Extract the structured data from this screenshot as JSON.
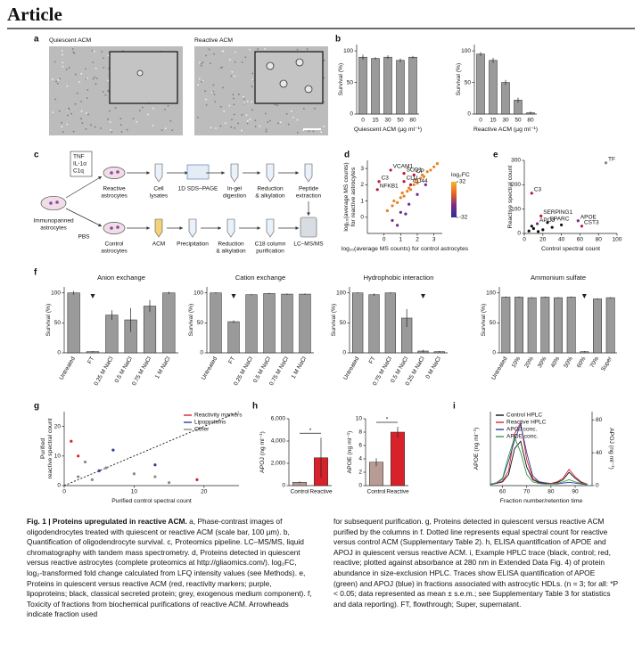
{
  "header": {
    "title": "Article"
  },
  "panel_labels": [
    "a",
    "b",
    "c",
    "d",
    "e",
    "f",
    "g",
    "h",
    "i"
  ],
  "micrographs": {
    "labels": [
      "Quiescent ACM",
      "Reactive ACM"
    ]
  },
  "diagram": {
    "labels": [
      [
        "TNF",
        "IL-1α",
        "C1q"
      ],
      [
        "Reactive",
        "astrocytes"
      ],
      [
        "Immunopanned",
        "astrocytes"
      ],
      [
        "PBS"
      ],
      [
        "Control",
        "astrocytes"
      ],
      [
        "Cell",
        "lysates"
      ],
      [
        "1D SDS–PAGE"
      ],
      [
        "In-gel",
        "digestion"
      ],
      [
        "Reduction",
        "& alkylation"
      ],
      [
        "Peptide",
        "extraction"
      ],
      [
        "ACM"
      ],
      [
        "Precipitation"
      ],
      [
        "Reduction",
        "& alkylation"
      ],
      [
        "C18 column",
        "purification"
      ],
      [
        "LC–MS/MS"
      ]
    ]
  },
  "chart_data": [
    {
      "type": "bar",
      "categories": [
        "0",
        "15",
        "30",
        "50",
        "80"
      ],
      "values": [
        90,
        88,
        90,
        85,
        90
      ],
      "errors": [
        4,
        2,
        3,
        3,
        2
      ],
      "color": "#9a9a9a",
      "ylim": [
        0,
        110
      ],
      "yticks": [
        0,
        50,
        100
      ],
      "ylabel": "Survival (%)",
      "xlabel": "Quiescent ACM (µg ml⁻¹)"
    },
    {
      "type": "bar",
      "categories": [
        "0",
        "15",
        "30",
        "50",
        "80"
      ],
      "values": [
        95,
        85,
        50,
        22,
        2
      ],
      "errors": [
        3,
        4,
        4,
        4,
        2
      ],
      "color": "#9a9a9a",
      "ylim": [
        0,
        110
      ],
      "yticks": [
        0,
        50,
        100
      ],
      "ylabel": "Survival (%)",
      "xlabel": "Reactive ACM (µg ml⁻¹)"
    },
    {
      "type": "scatter",
      "xlim": [
        -1,
        3.5
      ],
      "ylim": [
        -1,
        3.5
      ],
      "xticks": [
        0,
        1,
        2,
        3
      ],
      "yticks": [
        0,
        1,
        2,
        3
      ],
      "xlabel": "log₁₀(average MS counts) for control astrocytes",
      "ylabel": [
        "log₁₀(average MS counts)",
        "for reactive astrocytes"
      ],
      "colorbar": {
        "title": "log₂FC",
        "ticks": [
          32,
          -32
        ],
        "colors": [
          "#f7b531",
          "#e8631c",
          "#7b2a8c",
          "#2b2f8f"
        ]
      },
      "series": [
        {
          "color": "#e8821f",
          "x": [
            0.2,
            0.5,
            0.8,
            1.0,
            1.2,
            1.4,
            1.6,
            1.8,
            2.0,
            2.2,
            2.4,
            2.6,
            2.8,
            3.0,
            3.2,
            0.6,
            1.1,
            1.5,
            1.9,
            2.3
          ],
          "y": [
            0.4,
            0.7,
            0.9,
            1.2,
            1.3,
            1.6,
            1.7,
            2.0,
            2.1,
            2.4,
            2.5,
            2.8,
            2.9,
            3.1,
            3.3,
            1.0,
            1.5,
            1.8,
            2.3,
            2.6
          ]
        },
        {
          "color": "#6a2c8c",
          "x": [
            0.5,
            1.0,
            1.5,
            2.0,
            2.5,
            0.8,
            1.3
          ],
          "y": [
            -0.2,
            0.3,
            0.8,
            1.4,
            2.0,
            -0.5,
            0.2
          ]
        },
        {
          "color": "#c0143c",
          "x": [
            0.4,
            -0.3,
            1.2,
            1.8,
            1.2,
            1.6,
            -0.4
          ],
          "y": [
            2.9,
            2.2,
            2.7,
            2.6,
            2.2,
            2.0,
            1.7
          ],
          "labels": [
            "VCAM1",
            "C3",
            "SOD1",
            "CP",
            "CLU",
            "CD44",
            "NFKB1"
          ]
        }
      ]
    },
    {
      "type": "scatter",
      "xlim": [
        0,
        100
      ],
      "ylim": [
        0,
        300
      ],
      "xticks": [
        0,
        20,
        40,
        60,
        80,
        100
      ],
      "yticks": [
        0,
        100,
        200,
        300
      ],
      "xlabel": "Control spectral count",
      "ylabel": [
        "Reactive spectral count"
      ],
      "series": [
        {
          "color": "#c0143c",
          "x": [
            8,
            18,
            62
          ],
          "y": [
            165,
            72,
            30
          ],
          "labels": [
            "C3",
            "SERPING1",
            "CST3"
          ]
        },
        {
          "color": "#7a2a8c",
          "x": [
            14,
            58
          ],
          "y": [
            40,
            52
          ],
          "labels": [
            "APOJ",
            "APOE"
          ]
        },
        {
          "color": "#111111",
          "x": [
            25,
            5,
            10,
            15,
            30,
            40,
            20,
            8
          ],
          "y": [
            45,
            10,
            20,
            8,
            25,
            35,
            15,
            30
          ],
          "labels": [
            "SPARC",
            null,
            null,
            null,
            null,
            null,
            null,
            null
          ]
        },
        {
          "color": "#888888",
          "x": [
            88
          ],
          "y": [
            290
          ],
          "labels": [
            "TF"
          ]
        }
      ]
    },
    {
      "type": "bar",
      "title": "Anion exchange",
      "categories": [
        "Untreated",
        "FT",
        "0.25 M NaCl",
        "0.5 M NaCl",
        "0.75 M NaCl",
        "1 M NaCl"
      ],
      "values": [
        100,
        2,
        63,
        55,
        78,
        100
      ],
      "errors": [
        3,
        1,
        8,
        20,
        10,
        2
      ],
      "arrow_at": "FT",
      "color": "#9a9a9a",
      "ylim": [
        0,
        110
      ],
      "yticks": [
        0,
        50,
        100
      ],
      "ylabel": "Survival (%)"
    },
    {
      "type": "bar",
      "title": "Cation exchange",
      "categories": [
        "Untreated",
        "FT",
        "0.25 M NaCl",
        "0.5 M NaCl",
        "0.75 M NaCl",
        "1 M NaCl"
      ],
      "values": [
        100,
        52,
        97,
        99,
        98,
        98
      ],
      "errors": [
        1,
        2,
        1,
        1,
        1,
        1
      ],
      "arrow_at": "FT",
      "color": "#9a9a9a",
      "ylim": [
        0,
        110
      ],
      "yticks": [
        0,
        50,
        100
      ],
      "ylabel": "Survival (%)"
    },
    {
      "type": "bar",
      "title": "Hydrophobic interaction",
      "categories": [
        "Untreated",
        "FT",
        "0.75 M NaCl",
        "0.5 M NaCl",
        "0.25 M NaCl",
        "0 M NaCl"
      ],
      "values": [
        100,
        97,
        100,
        58,
        3,
        2
      ],
      "errors": [
        1,
        2,
        1,
        15,
        2,
        1
      ],
      "arrow_at": "0.25 M NaCl",
      "color": "#9a9a9a",
      "ylim": [
        0,
        110
      ],
      "yticks": [
        0,
        50,
        100
      ],
      "ylabel": "Survival (%)"
    },
    {
      "type": "bar",
      "title": "Ammonium sulfate",
      "categories": [
        "Untreated",
        "10%",
        "20%",
        "30%",
        "40%",
        "50%",
        "60%",
        "70%",
        "Super"
      ],
      "values": [
        93,
        93,
        92,
        93,
        92,
        93,
        2,
        90,
        92
      ],
      "errors": [
        1,
        1,
        1,
        1,
        1,
        1,
        1,
        1,
        1
      ],
      "arrow_at": "60%",
      "color": "#9a9a9a",
      "ylim": [
        0,
        110
      ],
      "yticks": [
        0,
        50,
        100
      ],
      "ylabel": "Survival (%)"
    },
    {
      "type": "scatter",
      "xlim": [
        0,
        25
      ],
      "ylim": [
        0,
        25
      ],
      "xticks": [
        0,
        10,
        20
      ],
      "yticks": [
        0,
        10,
        20
      ],
      "legend": "upper right",
      "xlabel": "Purified control spectral count",
      "ylabel": [
        "Purified",
        "reactive spectral count"
      ],
      "series": [
        {
          "name": "Reactivity markers",
          "color": "#d7222b",
          "x": [
            1,
            2,
            19
          ],
          "y": [
            15,
            10,
            2
          ]
        },
        {
          "name": "Lipoproteins",
          "color": "#2f3e9e",
          "x": [
            5,
            13,
            7
          ],
          "y": [
            5,
            7,
            12
          ]
        },
        {
          "name": "Other",
          "color": "#8a8a8a",
          "x": [
            2,
            4,
            10,
            13,
            15,
            6,
            3
          ],
          "y": [
            3,
            2,
            4,
            3,
            1,
            6,
            8
          ]
        }
      ]
    },
    {
      "type": "bar",
      "categories": [
        "Control",
        "Reactive"
      ],
      "values": [
        300,
        2500
      ],
      "errors": [
        80,
        1800
      ],
      "colors": [
        "#b99b95",
        "#d7222b"
      ],
      "significance": "*",
      "ylim": [
        0,
        6000
      ],
      "yticks": [
        0,
        {
          "value": 2000,
          "label": "2,000"
        },
        {
          "value": 4000,
          "label": "4,000"
        },
        {
          "value": 6000,
          "label": "6,000"
        }
      ],
      "ylabel": "APOJ (ng ml⁻¹)"
    },
    {
      "type": "bar",
      "categories": [
        "Control",
        "Reactive"
      ],
      "values": [
        3.5,
        8
      ],
      "errors": [
        0.6,
        0.8
      ],
      "colors": [
        "#b99b95",
        "#d7222b"
      ],
      "significance": "*",
      "ylim": [
        0,
        10
      ],
      "yticks": [
        0,
        2,
        4,
        6,
        8,
        10
      ],
      "ylabel": "APOE (ng ml⁻¹)"
    },
    {
      "type": "line",
      "x": [
        55,
        57.5,
        60,
        62.5,
        65,
        67.5,
        70,
        72.5,
        75,
        77.5,
        80,
        82.5,
        85,
        87.5,
        90,
        92.5,
        95
      ],
      "xlim": [
        55,
        97
      ],
      "xticks": [
        60,
        70,
        80,
        90
      ],
      "ylim": [
        0,
        100
      ],
      "y2lim": [
        0,
        90
      ],
      "y2ticks": [
        0,
        40,
        80
      ],
      "legend": "upper left",
      "xlabel": "Fraction number/retention time",
      "ylabel": [
        "APOE (ng ml⁻¹)"
      ],
      "y2label": "APOJ (ng ml⁻¹)",
      "series": [
        {
          "name": "Control HPLC",
          "color": "#111111",
          "values": [
            2,
            3,
            5,
            15,
            50,
            60,
            25,
            8,
            4,
            3,
            3,
            4,
            8,
            18,
            10,
            4,
            2
          ]
        },
        {
          "name": "Reactive HPLC",
          "color": "#d7222b",
          "values": [
            2,
            3,
            6,
            20,
            70,
            85,
            35,
            10,
            5,
            4,
            3,
            5,
            10,
            22,
            12,
            5,
            2
          ]
        },
        {
          "name": "APOJ conc.",
          "color": "#2f3e9e",
          "axis": "y2",
          "values": [
            1,
            3,
            8,
            30,
            55,
            75,
            40,
            12,
            5,
            3,
            2,
            2,
            3,
            4,
            3,
            2,
            1
          ]
        },
        {
          "name": "APOE conc.",
          "color": "#2e9a4a",
          "values": [
            2,
            4,
            10,
            40,
            65,
            45,
            15,
            5,
            3,
            2,
            2,
            3,
            5,
            8,
            5,
            3,
            2
          ]
        }
      ]
    }
  ],
  "caption": {
    "title": "Fig. 1 | Proteins upregulated in reactive ACM.",
    "left": "a, Phase-contrast images of oligodendrocytes treated with quiescent or reactive ACM (scale bar, 100 µm). b, Quantification of oligodendrocyte survival. c, Proteomics pipeline. LC–MS/MS, liquid chromatography with tandem mass spectrometry. d, Proteins detected in quiescent versus reactive astrocytes (complete proteomics at http://gliaomics.com/). log₂FC, log₂-transformed fold change calculated from LFQ intensity values (see Methods). e, Proteins in quiescent versus reactive ACM (red, reactivity markers; purple, lipoproteins; black, classical secreted protein; grey, exogenous medium component). f, Toxicity of fractions from biochemical purifications of reactive ACM. Arrowheads indicate fraction used",
    "right": "for subsequent purification. g, Proteins detected in quiescent versus reactive ACM purified by the columns in f. Dotted line represents equal spectral count for reactive versus control ACM (Supplementary Table 2). h, ELISA quantification of APOE and APOJ in quiescent versus reactive ACM. i, Example HPLC trace (black, control; red, reactive; plotted against absorbance at 280 nm in Extended Data Fig. 4) of protein abundance in size-exclusion HPLC. Traces show ELISA quantification of APOE (green) and APOJ (blue) in fractions associated with astrocytic HDLs. (n = 3; for all: *P < 0.05; data represented as mean ± s.e.m.; see Supplementary Table 3 for statistics and data reporting). FT, flowthrough; Super, supernatant."
  }
}
